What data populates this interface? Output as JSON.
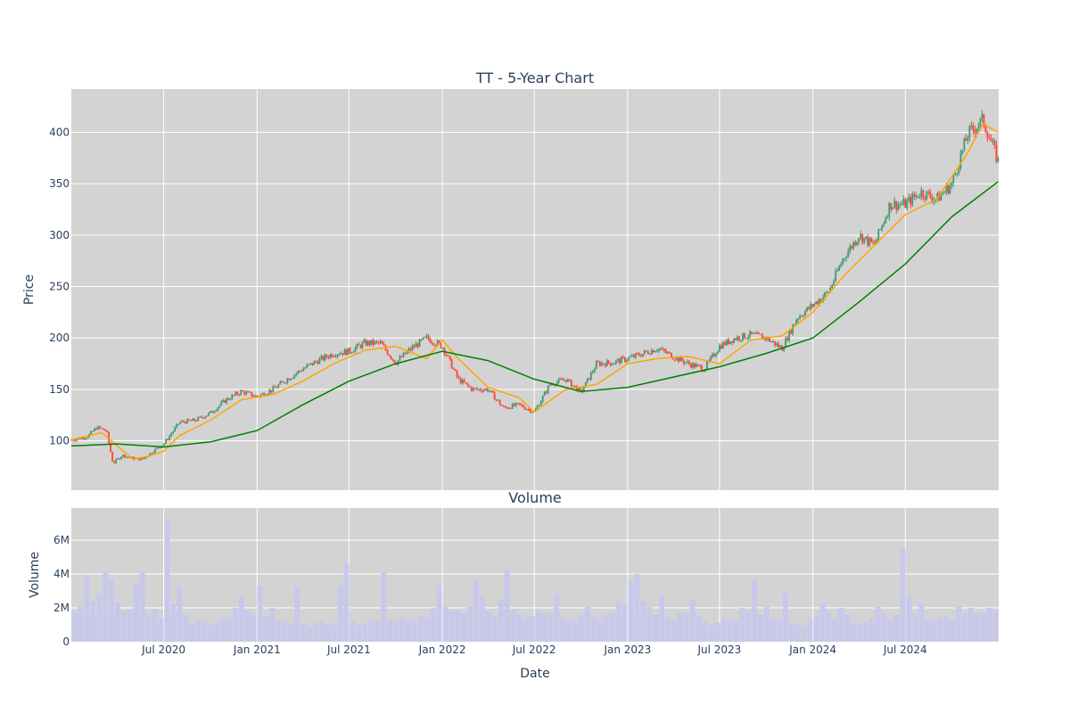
{
  "chart_data": [
    {
      "type": "candlestick",
      "title": "TT - 5-Year Chart",
      "ylabel": "Price",
      "xlabel": "",
      "ylim": [
        52,
        442
      ],
      "xlim": [
        "2020-01-01",
        "2025-01-01"
      ],
      "y_ticks": [
        100,
        150,
        200,
        250,
        300,
        350,
        400
      ],
      "x_ticks": [
        "2020-07-01",
        "2021-01-01",
        "2021-07-01",
        "2022-01-01",
        "2022-07-01",
        "2023-01-01",
        "2023-07-01",
        "2024-01-01",
        "2024-07-01"
      ],
      "grid": true,
      "legend": "none",
      "colors": {
        "up": "#3d9970",
        "down": "#ff4136",
        "ma_short": "#ffa500",
        "ma_long": "#008000",
        "background": "#d3d3d3",
        "grid": "#ffffff"
      },
      "series": [
        {
          "kind": "ohlc-close-path",
          "dates": [
            "2020-01-01",
            "2020-02-01",
            "2020-02-20",
            "2020-03-10",
            "2020-03-23",
            "2020-04-10",
            "2020-05-01",
            "2020-05-20",
            "2020-06-10",
            "2020-07-01",
            "2020-08-01",
            "2020-09-01",
            "2020-10-01",
            "2020-11-01",
            "2020-12-01",
            "2021-01-01",
            "2021-02-01",
            "2021-03-01",
            "2021-04-01",
            "2021-05-01",
            "2021-06-01",
            "2021-07-01",
            "2021-08-01",
            "2021-09-01",
            "2021-10-01",
            "2021-11-01",
            "2021-12-01",
            "2022-01-01",
            "2022-02-01",
            "2022-03-01",
            "2022-04-01",
            "2022-05-01",
            "2022-06-01",
            "2022-07-01",
            "2022-08-01",
            "2022-09-01",
            "2022-10-01",
            "2022-11-01",
            "2022-12-01",
            "2023-01-01",
            "2023-02-01",
            "2023-03-01",
            "2023-04-01",
            "2023-05-01",
            "2023-06-01",
            "2023-07-01",
            "2023-08-01",
            "2023-09-01",
            "2023-10-01",
            "2023-11-01",
            "2023-12-01",
            "2024-01-01",
            "2024-02-01",
            "2024-03-01",
            "2024-04-01",
            "2024-05-01",
            "2024-06-01",
            "2024-07-01",
            "2024-08-01",
            "2024-09-01",
            "2024-10-01",
            "2024-11-01",
            "2024-12-01",
            "2024-12-31"
          ],
          "close": [
            101,
            104,
            113,
            110,
            78,
            86,
            83,
            82,
            90,
            97,
            118,
            120,
            127,
            140,
            148,
            143,
            150,
            160,
            170,
            178,
            185,
            187,
            195,
            195,
            176,
            190,
            200,
            192,
            160,
            150,
            150,
            132,
            135,
            128,
            155,
            160,
            147,
            175,
            176,
            180,
            185,
            190,
            182,
            175,
            170,
            192,
            200,
            203,
            200,
            190,
            220,
            232,
            245,
            278,
            300,
            290,
            330,
            330,
            342,
            335,
            350,
            398,
            412,
            372
          ]
        },
        {
          "name": "",
          "kind": "moving-average-short",
          "dates": [
            "2020-01-01",
            "2020-03-01",
            "2020-04-01",
            "2020-05-01",
            "2020-06-01",
            "2020-07-01",
            "2020-08-01",
            "2020-10-01",
            "2020-12-01",
            "2021-02-01",
            "2021-04-01",
            "2021-06-01",
            "2021-08-01",
            "2021-10-01",
            "2021-12-01",
            "2022-01-01",
            "2022-02-01",
            "2022-04-01",
            "2022-06-01",
            "2022-07-01",
            "2022-09-01",
            "2022-11-01",
            "2023-01-01",
            "2023-03-01",
            "2023-05-01",
            "2023-07-01",
            "2023-09-01",
            "2023-11-01",
            "2024-01-01",
            "2024-03-01",
            "2024-05-01",
            "2024-07-01",
            "2024-09-01",
            "2024-11-01",
            "2024-12-01",
            "2024-12-31"
          ],
          "values": [
            101,
            108,
            95,
            82,
            85,
            90,
            105,
            120,
            140,
            145,
            158,
            175,
            188,
            192,
            180,
            198,
            180,
            152,
            142,
            128,
            150,
            155,
            175,
            180,
            182,
            175,
            198,
            202,
            225,
            260,
            290,
            320,
            335,
            380,
            408,
            400
          ]
        },
        {
          "name": "",
          "kind": "moving-average-long",
          "dates": [
            "2020-01-01",
            "2020-04-01",
            "2020-07-01",
            "2020-10-01",
            "2021-01-01",
            "2021-04-01",
            "2021-07-01",
            "2021-10-01",
            "2022-01-01",
            "2022-04-01",
            "2022-07-01",
            "2022-10-01",
            "2023-01-01",
            "2023-04-01",
            "2023-07-01",
            "2023-10-01",
            "2024-01-01",
            "2024-04-01",
            "2024-07-01",
            "2024-10-01",
            "2024-12-31"
          ],
          "values": [
            95,
            97,
            94,
            99,
            110,
            135,
            158,
            175,
            187,
            178,
            160,
            148,
            152,
            162,
            172,
            185,
            200,
            235,
            272,
            318,
            352
          ]
        }
      ]
    },
    {
      "type": "bar",
      "title": "Volume",
      "ylabel": "Volume",
      "xlabel": "Date",
      "ylim": [
        0,
        7900000
      ],
      "y_ticks": [
        0,
        2000000,
        4000000,
        6000000
      ],
      "y_tick_labels": [
        "0",
        "2M",
        "4M",
        "6M"
      ],
      "x_tick_labels": [
        "Jul 2020",
        "Jan 2021",
        "Jul 2021",
        "Jan 2022",
        "Jul 2022",
        "Jan 2023",
        "Jul 2023",
        "Jan 2024",
        "Jul 2024"
      ],
      "grid": true,
      "colors": {
        "bar": "#c8c8ec",
        "background": "#d3d3d3"
      },
      "values": [
        1800000,
        2100000,
        3900000,
        2400000,
        2800000,
        4100000,
        3700000,
        2300000,
        1800000,
        1900000,
        3400000,
        4100000,
        1600000,
        1900000,
        1400000,
        7300000,
        2200000,
        3300000,
        1600000,
        1100000,
        1300000,
        1200000,
        1000000,
        1100000,
        1300000,
        1400000,
        2000000,
        2700000,
        1800000,
        1600000,
        3300000,
        1500000,
        2000000,
        1300000,
        1200000,
        1100000,
        3300000,
        1100000,
        900000,
        1100000,
        1200000,
        1000000,
        1100000,
        3300000,
        4600000,
        1200000,
        1000000,
        1100000,
        1300000,
        1200000,
        4200000,
        1300000,
        1200000,
        1400000,
        1300000,
        1200000,
        1500000,
        1400000,
        2000000,
        3300000,
        2100000,
        1800000,
        1900000,
        1700000,
        2100000,
        3600000,
        2600000,
        1800000,
        1500000,
        2500000,
        4300000,
        1900000,
        1600000,
        1400000,
        1500000,
        1800000,
        1700000,
        1600000,
        2800000,
        1400000,
        1300000,
        1200000,
        1600000,
        2100000,
        1500000,
        1400000,
        1600000,
        1700000,
        2400000,
        2200000,
        3600000,
        4000000,
        2400000,
        2100000,
        1600000,
        2700000,
        1400000,
        1300000,
        1700000,
        1600000,
        2500000,
        1500000,
        1200000,
        1000000,
        1100000,
        1400000,
        1300000,
        1200000,
        2000000,
        1800000,
        3700000,
        1600000,
        2100000,
        1400000,
        1300000,
        2900000,
        1100000,
        1000000,
        900000,
        1300000,
        1500000,
        2300000,
        1800000,
        1300000,
        2000000,
        1600000,
        1100000,
        1000000,
        1200000,
        1400000,
        2100000,
        1700000,
        1300000,
        1600000,
        5500000,
        2700000,
        1600000,
        2300000,
        1300000,
        1200000,
        1400000,
        1500000,
        1300000,
        2100000,
        1700000,
        2000000,
        1600000,
        1700000,
        2000000,
        1900000
      ]
    }
  ]
}
